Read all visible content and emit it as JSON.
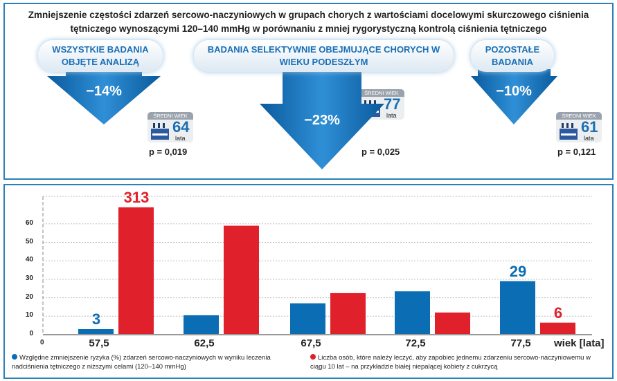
{
  "header": {
    "title": "Zmniejszenie częstości zdarzeń sercowo-naczyniowych w grupach chorych z wartościami docelowymi skurczowego ciśnienia tętniczego wynoszącymi 120–140 mmHg w porównaniu z mniej rygorystyczną kontrolą ciśnienia tętniczego"
  },
  "groups": [
    {
      "label": "WSZYSTKIE BADANIA OBJĘTE ANALIZĄ",
      "reduction": "−14%",
      "badge_title": "ŚREDNI WIEK",
      "age": "64",
      "age_unit": "lata",
      "p": "p = 0,019"
    },
    {
      "label": "BADANIA SELEKTYWNIE OBEJMUJĄCE CHORYCH W WIEKU PODESZŁYM",
      "reduction": "−23%",
      "badge_title": "ŚREDNI WIEK",
      "age": "77",
      "age_unit": "lata",
      "p": "p = 0,025"
    },
    {
      "label": "POZOSTAŁE BADANIA",
      "reduction": "−10%",
      "badge_title": "ŚREDNI WIEK",
      "age": "61",
      "age_unit": "lata",
      "p": "p = 0,121"
    }
  ],
  "colors": {
    "blue": "#0b6db3",
    "red": "#e0212b",
    "border": "#2a80b8"
  },
  "chart_data": {
    "type": "bar",
    "categories": [
      "57,5",
      "62,5",
      "67,5",
      "72,5",
      "77,5"
    ],
    "xlabel": "wiek [lata]",
    "origin_label": "0",
    "yticks": [
      "0",
      "10",
      "20",
      "30",
      "40",
      "50",
      "60"
    ],
    "ylim": [
      0,
      72
    ],
    "grid": true,
    "series": [
      {
        "name": "Względne zmniejszenie ryzyka (%) zdarzeń sercowo-naczyniowych w wyniku leczenia nadciśnienia tętniczego z niższymi celami (120–140 mmHg)",
        "color": "#0b6db3",
        "values": [
          3,
          10.5,
          17,
          23.5,
          29
        ],
        "data_labels": [
          "3",
          "",
          "",
          "",
          "29"
        ]
      },
      {
        "name": "Liczba osób, które należy leczyć, aby zapobiec jednemu zdarzeniu sercowo-naczyniowemu w ciągu 10 lat – na przykładzie białej niepalącej kobiety z cukrzycą",
        "color": "#e0212b",
        "values": [
          313,
          59,
          22.5,
          12,
          6.5
        ],
        "data_labels": [
          "313",
          "",
          "",
          "",
          "6"
        ],
        "axis_break_at": 69
      }
    ]
  }
}
